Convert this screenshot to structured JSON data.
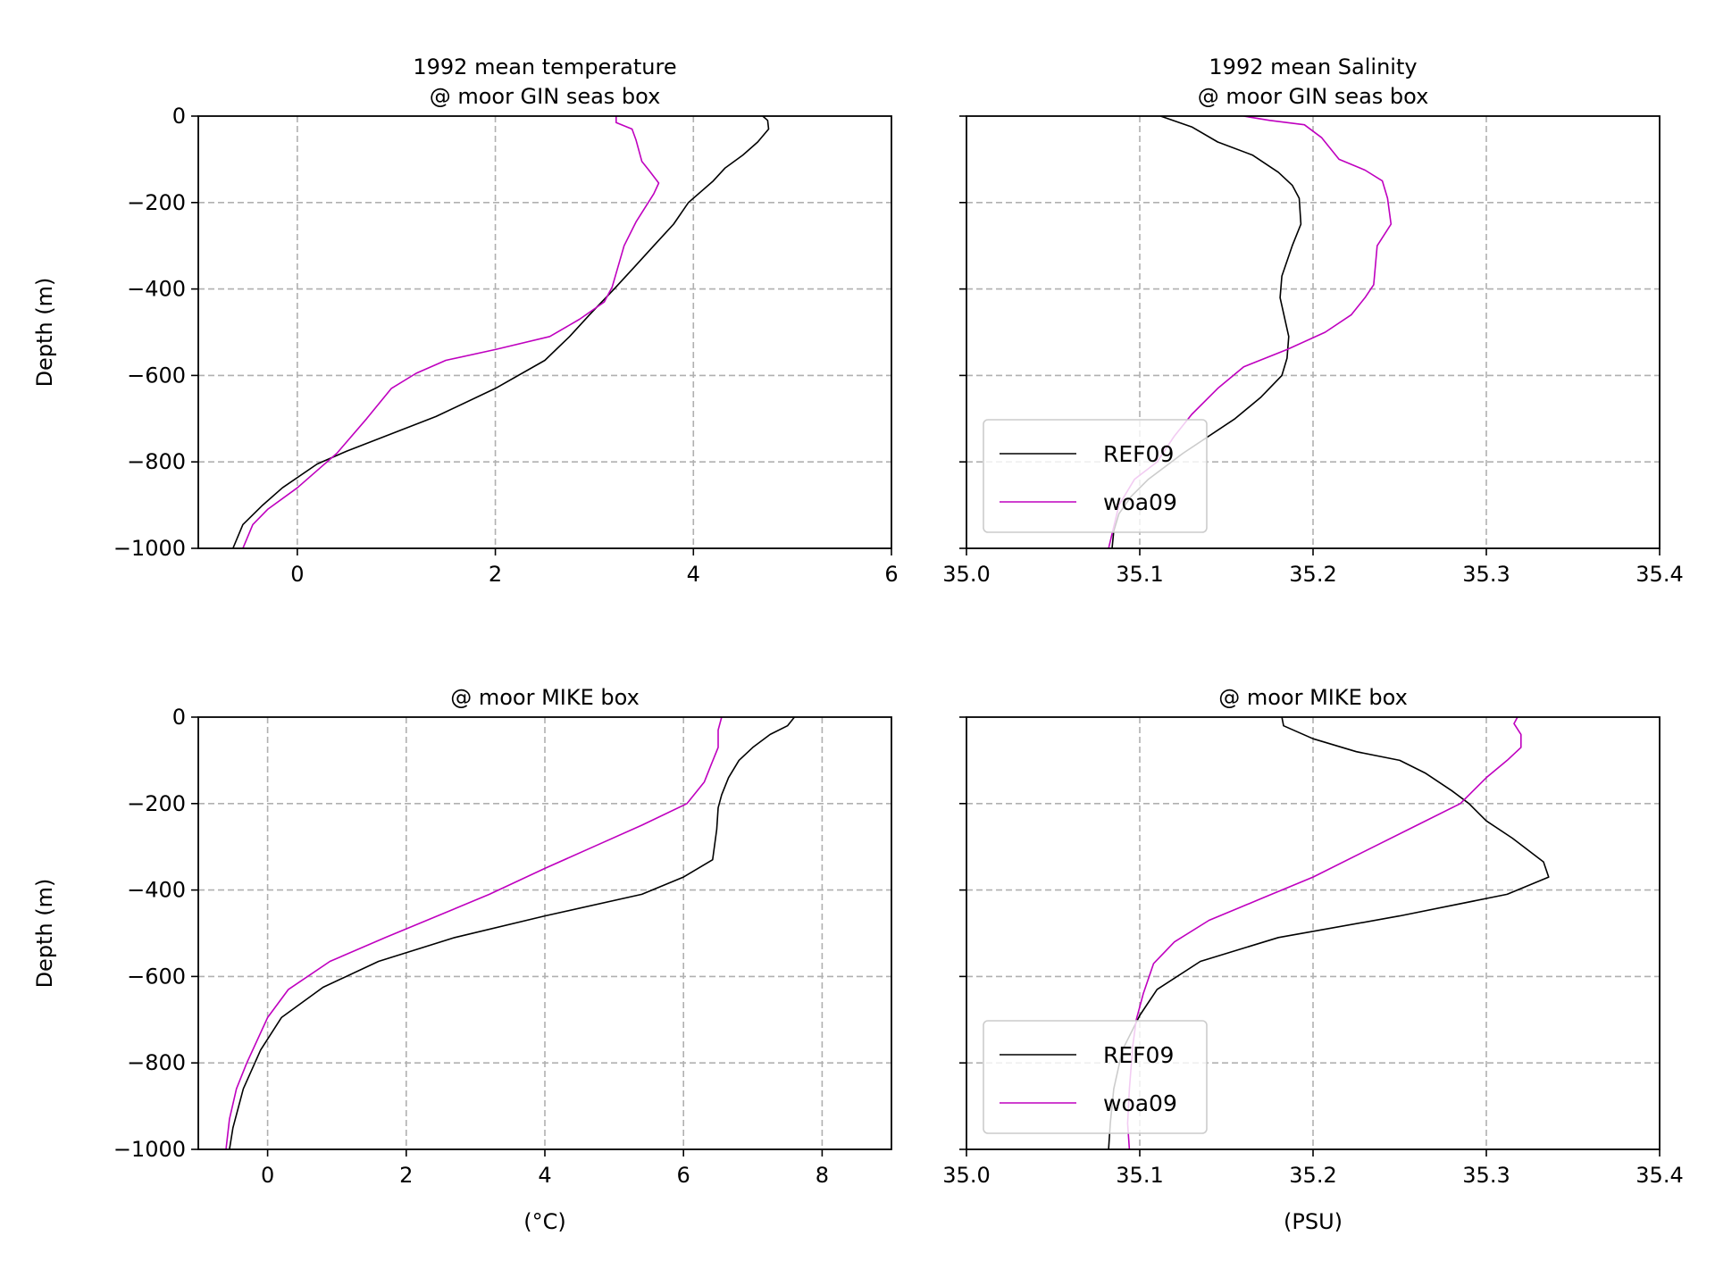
{
  "colors": {
    "REF09": "#000000",
    "woa09": "#bf00bf",
    "grid": "#b0b0b0"
  },
  "chart_data": [
    {
      "type": "line",
      "title_lines": [
        "1992 mean temperature",
        "@ moor GIN seas box"
      ],
      "xlabel": "",
      "ylabel": "Depth (m)",
      "xlim": [
        -1,
        6
      ],
      "ylim": [
        -1000,
        0
      ],
      "xticks": [
        0,
        2,
        4,
        6
      ],
      "xtick_labels": [
        "0",
        "2",
        "4",
        "6"
      ],
      "yticks": [
        0,
        -200,
        -400,
        -600,
        -800,
        -1000
      ],
      "ytick_labels": [
        "0",
        "−200",
        "−400",
        "−600",
        "−800",
        "−1000"
      ],
      "show_yticklabels": true,
      "grid": true,
      "legend": null,
      "series": [
        {
          "name": "REF09",
          "color": "#000000",
          "points": [
            [
              4.7,
              0
            ],
            [
              4.75,
              -10
            ],
            [
              4.76,
              -30
            ],
            [
              4.65,
              -60
            ],
            [
              4.5,
              -90
            ],
            [
              4.32,
              -120
            ],
            [
              4.2,
              -150
            ],
            [
              3.95,
              -200
            ],
            [
              3.8,
              -250
            ],
            [
              3.6,
              -300
            ],
            [
              3.4,
              -350
            ],
            [
              3.2,
              -400
            ],
            [
              2.95,
              -460
            ],
            [
              2.75,
              -510
            ],
            [
              2.5,
              -565
            ],
            [
              2.0,
              -630
            ],
            [
              1.4,
              -695
            ],
            [
              0.5,
              -775
            ],
            [
              0.2,
              -805
            ],
            [
              -0.15,
              -860
            ],
            [
              -0.35,
              -900
            ],
            [
              -0.55,
              -945
            ],
            [
              -0.65,
              -1000
            ]
          ]
        },
        {
          "name": "woa09",
          "color": "#bf00bf",
          "points": [
            [
              3.22,
              0
            ],
            [
              3.22,
              -15
            ],
            [
              3.38,
              -30
            ],
            [
              3.42,
              -55
            ],
            [
              3.48,
              -105
            ],
            [
              3.55,
              -125
            ],
            [
              3.65,
              -155
            ],
            [
              3.6,
              -180
            ],
            [
              3.42,
              -245
            ],
            [
              3.3,
              -300
            ],
            [
              3.18,
              -395
            ],
            [
              3.1,
              -430
            ],
            [
              2.85,
              -470
            ],
            [
              2.55,
              -510
            ],
            [
              2.0,
              -540
            ],
            [
              1.5,
              -565
            ],
            [
              1.2,
              -595
            ],
            [
              0.95,
              -630
            ],
            [
              0.7,
              -700
            ],
            [
              0.4,
              -780
            ],
            [
              0.3,
              -800
            ],
            [
              0.0,
              -860
            ],
            [
              -0.3,
              -910
            ],
            [
              -0.45,
              -945
            ],
            [
              -0.55,
              -1000
            ]
          ]
        }
      ]
    },
    {
      "type": "line",
      "title_lines": [
        "1992 mean Salinity",
        "@ moor GIN seas box"
      ],
      "xlabel": "",
      "ylabel": "",
      "xlim": [
        35.0,
        35.4
      ],
      "ylim": [
        -1000,
        0
      ],
      "xticks": [
        35.0,
        35.1,
        35.2,
        35.3,
        35.4
      ],
      "xtick_labels": [
        "35.0",
        "35.1",
        "35.2",
        "35.3",
        "35.4"
      ],
      "yticks": [
        0,
        -200,
        -400,
        -600,
        -800,
        -1000
      ],
      "ytick_labels": [
        "0",
        "−200",
        "−400",
        "−600",
        "−800",
        "−1000"
      ],
      "show_yticklabels": false,
      "grid": true,
      "legend": "lower-left",
      "series": [
        {
          "name": "REF09",
          "color": "#000000",
          "points": [
            [
              35.112,
              0
            ],
            [
              35.13,
              -25
            ],
            [
              35.145,
              -60
            ],
            [
              35.165,
              -90
            ],
            [
              35.18,
              -130
            ],
            [
              35.188,
              -160
            ],
            [
              35.192,
              -190
            ],
            [
              35.193,
              -250
            ],
            [
              35.188,
              -300
            ],
            [
              35.182,
              -370
            ],
            [
              35.181,
              -420
            ],
            [
              35.186,
              -510
            ],
            [
              35.185,
              -560
            ],
            [
              35.182,
              -600
            ],
            [
              35.17,
              -650
            ],
            [
              35.155,
              -700
            ],
            [
              35.125,
              -780
            ],
            [
              35.105,
              -840
            ],
            [
              35.095,
              -880
            ],
            [
              35.088,
              -920
            ],
            [
              35.085,
              -960
            ],
            [
              35.084,
              -1000
            ]
          ]
        },
        {
          "name": "woa09",
          "color": "#bf00bf",
          "points": [
            [
              35.16,
              0
            ],
            [
              35.175,
              -10
            ],
            [
              35.195,
              -20
            ],
            [
              35.205,
              -50
            ],
            [
              35.215,
              -100
            ],
            [
              35.23,
              -125
            ],
            [
              35.24,
              -150
            ],
            [
              35.243,
              -190
            ],
            [
              35.245,
              -250
            ],
            [
              35.237,
              -300
            ],
            [
              35.235,
              -390
            ],
            [
              35.23,
              -420
            ],
            [
              35.222,
              -460
            ],
            [
              35.207,
              -500
            ],
            [
              35.185,
              -540
            ],
            [
              35.16,
              -580
            ],
            [
              35.145,
              -630
            ],
            [
              35.13,
              -690
            ],
            [
              35.12,
              -740
            ],
            [
              35.11,
              -800
            ],
            [
              35.097,
              -840
            ],
            [
              35.088,
              -900
            ],
            [
              35.085,
              -950
            ],
            [
              35.082,
              -1000
            ]
          ]
        }
      ]
    },
    {
      "type": "line",
      "title_lines": [
        "@ moor MIKE box"
      ],
      "xlabel": "(°C)",
      "ylabel": "Depth (m)",
      "xlim": [
        -1,
        9
      ],
      "ylim": [
        -1000,
        0
      ],
      "xticks": [
        0,
        2,
        4,
        6,
        8
      ],
      "xtick_labels": [
        "0",
        "2",
        "4",
        "6",
        "8"
      ],
      "yticks": [
        0,
        -200,
        -400,
        -600,
        -800,
        -1000
      ],
      "ytick_labels": [
        "0",
        "−200",
        "−400",
        "−600",
        "−800",
        "−1000"
      ],
      "show_yticklabels": true,
      "grid": true,
      "legend": null,
      "series": [
        {
          "name": "REF09",
          "color": "#000000",
          "points": [
            [
              7.6,
              0
            ],
            [
              7.5,
              -20
            ],
            [
              7.25,
              -40
            ],
            [
              7.0,
              -70
            ],
            [
              6.8,
              -100
            ],
            [
              6.65,
              -140
            ],
            [
              6.55,
              -180
            ],
            [
              6.5,
              -210
            ],
            [
              6.48,
              -260
            ],
            [
              6.42,
              -330
            ],
            [
              6.0,
              -370
            ],
            [
              5.4,
              -410
            ],
            [
              4.0,
              -460
            ],
            [
              2.7,
              -510
            ],
            [
              1.6,
              -565
            ],
            [
              0.8,
              -625
            ],
            [
              0.2,
              -695
            ],
            [
              -0.1,
              -770
            ],
            [
              -0.35,
              -860
            ],
            [
              -0.5,
              -950
            ],
            [
              -0.55,
              -1000
            ]
          ]
        },
        {
          "name": "woa09",
          "color": "#bf00bf",
          "points": [
            [
              6.55,
              0
            ],
            [
              6.5,
              -30
            ],
            [
              6.5,
              -70
            ],
            [
              6.4,
              -110
            ],
            [
              6.3,
              -150
            ],
            [
              6.05,
              -200
            ],
            [
              5.4,
              -250
            ],
            [
              4.7,
              -300
            ],
            [
              4.0,
              -350
            ],
            [
              3.2,
              -410
            ],
            [
              1.7,
              -510
            ],
            [
              0.9,
              -565
            ],
            [
              0.3,
              -630
            ],
            [
              0.0,
              -695
            ],
            [
              -0.3,
              -800
            ],
            [
              -0.45,
              -860
            ],
            [
              -0.55,
              -930
            ],
            [
              -0.6,
              -1000
            ]
          ]
        }
      ]
    },
    {
      "type": "line",
      "title_lines": [
        "@ moor MIKE box"
      ],
      "xlabel": "(PSU)",
      "ylabel": "",
      "xlim": [
        35.0,
        35.4
      ],
      "ylim": [
        -1000,
        0
      ],
      "xticks": [
        35.0,
        35.1,
        35.2,
        35.3,
        35.4
      ],
      "xtick_labels": [
        "35.0",
        "35.1",
        "35.2",
        "35.3",
        "35.4"
      ],
      "yticks": [
        0,
        -200,
        -400,
        -600,
        -800,
        -1000
      ],
      "ytick_labels": [
        "0",
        "−200",
        "−400",
        "−600",
        "−800",
        "−1000"
      ],
      "show_yticklabels": false,
      "grid": true,
      "legend": "lower-left",
      "series": [
        {
          "name": "REF09",
          "color": "#000000",
          "points": [
            [
              35.182,
              0
            ],
            [
              35.183,
              -20
            ],
            [
              35.2,
              -50
            ],
            [
              35.225,
              -80
            ],
            [
              35.25,
              -100
            ],
            [
              35.265,
              -130
            ],
            [
              35.28,
              -170
            ],
            [
              35.29,
              -200
            ],
            [
              35.3,
              -240
            ],
            [
              35.315,
              -280
            ],
            [
              35.333,
              -335
            ],
            [
              35.336,
              -370
            ],
            [
              35.312,
              -410
            ],
            [
              35.25,
              -460
            ],
            [
              35.18,
              -510
            ],
            [
              35.135,
              -565
            ],
            [
              35.11,
              -630
            ],
            [
              35.1,
              -690
            ],
            [
              35.09,
              -770
            ],
            [
              35.085,
              -860
            ],
            [
              35.083,
              -940
            ],
            [
              35.082,
              -1000
            ]
          ]
        },
        {
          "name": "woa09",
          "color": "#bf00bf",
          "points": [
            [
              35.318,
              0
            ],
            [
              35.316,
              -15
            ],
            [
              35.32,
              -40
            ],
            [
              35.32,
              -70
            ],
            [
              35.312,
              -100
            ],
            [
              35.3,
              -140
            ],
            [
              35.285,
              -200
            ],
            [
              35.26,
              -250
            ],
            [
              35.235,
              -300
            ],
            [
              35.2,
              -370
            ],
            [
              35.17,
              -420
            ],
            [
              35.14,
              -470
            ],
            [
              35.12,
              -520
            ],
            [
              35.108,
              -570
            ],
            [
              35.102,
              -640
            ],
            [
              35.098,
              -700
            ],
            [
              35.096,
              -760
            ],
            [
              35.094,
              -860
            ],
            [
              35.093,
              -940
            ],
            [
              35.094,
              -1000
            ]
          ]
        }
      ]
    }
  ]
}
